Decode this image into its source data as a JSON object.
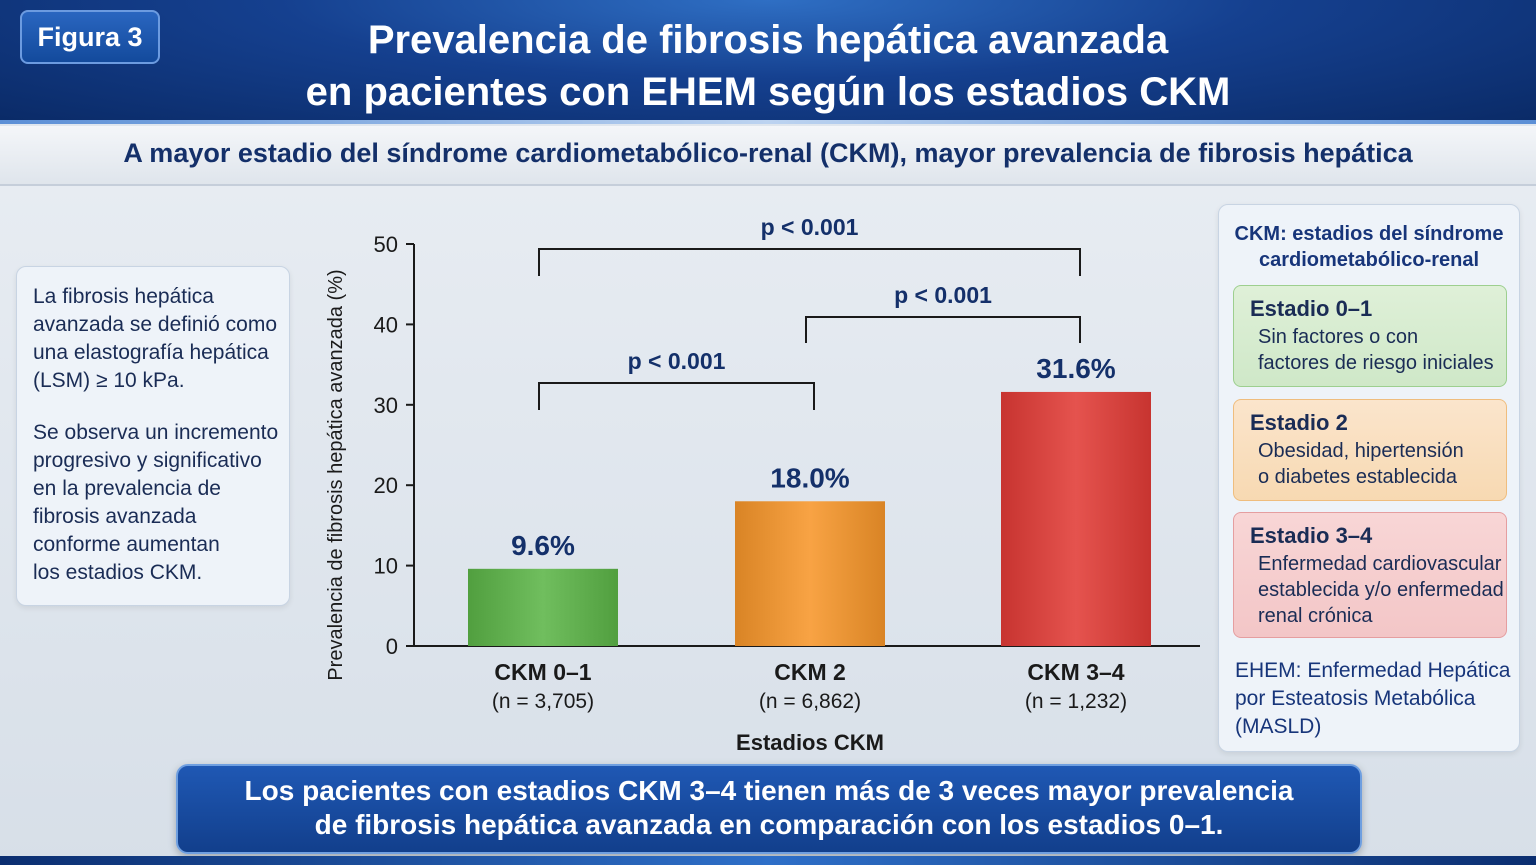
{
  "figure_label": "Figura 3",
  "title_line1": "Prevalencia de fibrosis hepática avanzada",
  "title_line2": "en pacientes con EHEM según los estadios CKM",
  "subtitle": "A mayor estadio del síndrome cardiometabólico-renal (CKM), mayor prevalencia de fibrosis hepática",
  "left_note": {
    "p1": "La fibrosis hepática\navanzada se definió como\nuna elastografía hepática\n(LSM) ≥ 10 kPa.",
    "p2": "Se observa un incremento\nprogresivo y significativo\nen la prevalencia de\nfibrosis avanzada\nconforme aumentan\nlos estadios CKM."
  },
  "legend_panel": {
    "title": "CKM: estadios del síndrome\ncardiometabólico-renal",
    "stages": [
      {
        "name": "Estadio 0–1",
        "desc": "Sin factores o con\nfactores de riesgo iniciales",
        "color": "#cfe8c8"
      },
      {
        "name": "Estadio 2",
        "desc": "Obesidad, hipertensión\no diabetes establecida",
        "color": "#f7d9b2"
      },
      {
        "name": "Estadio 3–4",
        "desc": "Enfermedad cardiovascular\nestablecida y/o enfermedad\nrenal crónica",
        "color": "#f3c6c7"
      }
    ],
    "footnote": "EHEM: Enfermedad Hepática\npor Esteatosis Metabólica\n(MASLD)"
  },
  "conclusion": "Los pacientes con estadios CKM 3–4 tienen más de 3 veces mayor prevalencia\nde fibrosis hepática avanzada en comparación con los estadios 0–1.",
  "chart_data": {
    "type": "bar",
    "categories": [
      "CKM 0–1",
      "CKM 2",
      "CKM 3–4"
    ],
    "sample_sizes": [
      "(n = 3,705)",
      "(n = 6,862)",
      "(n = 1,232)"
    ],
    "values": [
      9.6,
      18.0,
      31.6
    ],
    "value_labels": [
      "9.6%",
      "18.0%",
      "31.6%"
    ],
    "colors": [
      "#5cb548",
      "#f7962a",
      "#e23b36"
    ],
    "ylabel": "Prevalencia de fibrosis hepática avanzada (%)",
    "xlabel": "Estadios CKM",
    "ylim": [
      0,
      50
    ],
    "yticks": [
      0,
      10,
      20,
      30,
      40,
      50
    ],
    "comparisons": [
      {
        "from": 0,
        "to": 1,
        "label": "p < 0.001"
      },
      {
        "from": 1,
        "to": 2,
        "label": "p < 0.001"
      },
      {
        "from": 0,
        "to": 2,
        "label": "p < 0.001"
      }
    ]
  }
}
